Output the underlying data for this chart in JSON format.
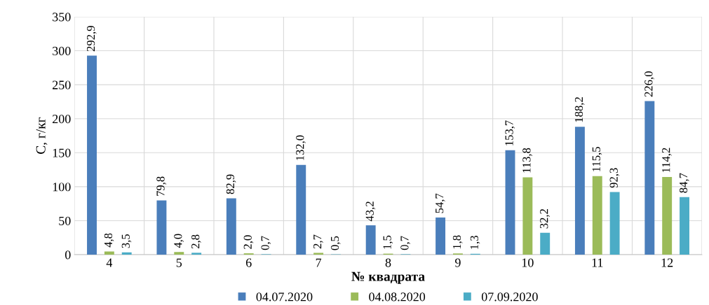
{
  "chart_data": {
    "type": "bar",
    "xlabel": "№ квадрата",
    "ylabel": "С, г/кг",
    "categories": [
      "4",
      "5",
      "6",
      "7",
      "8",
      "9",
      "10",
      "11",
      "12"
    ],
    "series": [
      {
        "name": "04.07.2020",
        "color": "#4a7ebb",
        "values": [
          292.9,
          79.8,
          82.9,
          132.0,
          43.2,
          54.7,
          153.7,
          188.2,
          226.0
        ],
        "value_labels": [
          "292,9",
          "79,8",
          "82,9",
          "132,0",
          "43,2",
          "54,7",
          "153,7",
          "188,2",
          "226,0"
        ]
      },
      {
        "name": "04.08.2020",
        "color": "#9bbb59",
        "values": [
          4.8,
          4.0,
          2.0,
          2.7,
          1.5,
          1.8,
          113.8,
          115.5,
          114.2
        ],
        "value_labels": [
          "4,8",
          "4,0",
          "2,0",
          "2,7",
          "1,5",
          "1,8",
          "113,8",
          "115,5",
          "114,2"
        ]
      },
      {
        "name": "07.09.2020",
        "color": "#4bacc6",
        "values": [
          3.5,
          2.8,
          0.7,
          0.5,
          0.7,
          1.3,
          32.2,
          92.3,
          84.7
        ],
        "value_labels": [
          "3,5",
          "2,8",
          "0,7",
          "0,5",
          "0,7",
          "1,3",
          "32,2",
          "92,3",
          "84,7"
        ]
      }
    ],
    "ylim": [
      0,
      350
    ],
    "yticks": [
      0,
      50,
      100,
      150,
      200,
      250,
      300,
      350
    ],
    "grid": true,
    "legend": "bottom"
  }
}
